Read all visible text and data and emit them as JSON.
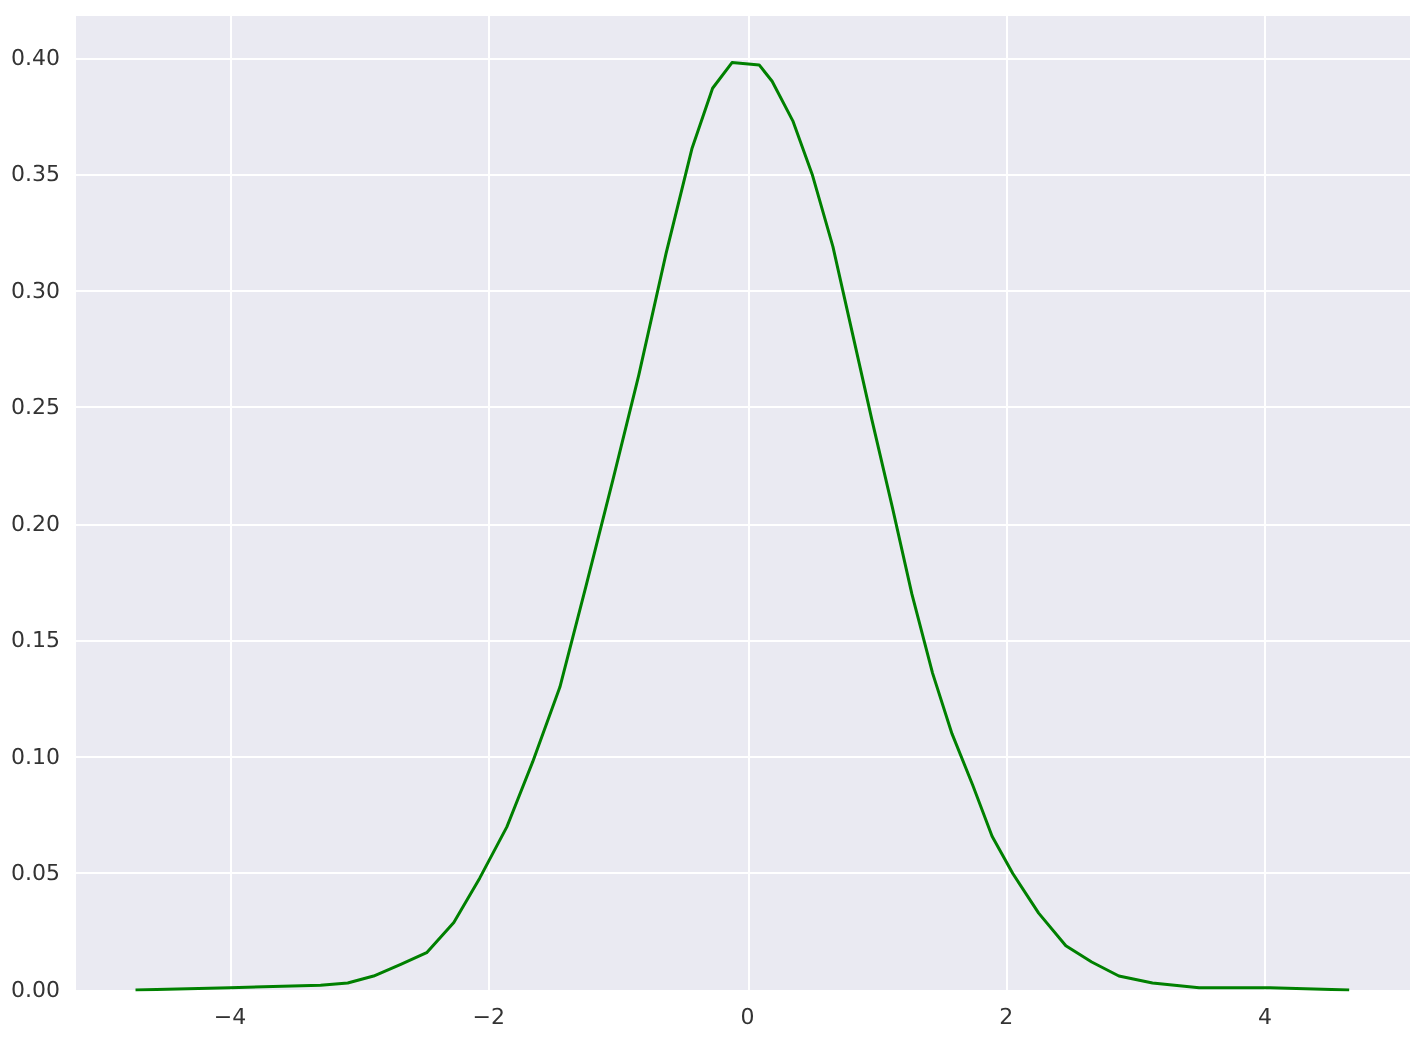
{
  "chart_data": {
    "type": "line",
    "x": [
      -4.73,
      -4,
      -3.3,
      -3.09,
      -2.89,
      -2.68,
      -2.48,
      -2.27,
      -2.07,
      -1.86,
      -1.66,
      -1.45,
      -1.25,
      -1.04,
      -0.84,
      -0.63,
      -0.43,
      -0.27,
      -0.12,
      0.09,
      0.19,
      0.35,
      0.5,
      0.66,
      0.81,
      0.96,
      1.12,
      1.27,
      1.43,
      1.58,
      1.74,
      1.89,
      2.05,
      2.25,
      2.46,
      2.66,
      2.87,
      3.13,
      3.49,
      4.0,
      4.65
    ],
    "series": [
      {
        "color": "#008000",
        "values": [
          0,
          0.001,
          0.002,
          0.003,
          0.006,
          0.011,
          0.016,
          0.029,
          0.048,
          0.07,
          0.098,
          0.13,
          0.173,
          0.219,
          0.264,
          0.316,
          0.361,
          0.387,
          0.398,
          0.397,
          0.39,
          0.373,
          0.35,
          0.319,
          0.282,
          0.245,
          0.207,
          0.17,
          0.136,
          0.11,
          0.088,
          0.066,
          0.05,
          0.033,
          0.019,
          0.012,
          0.006,
          0.003,
          0.001,
          0.001,
          0
        ]
      }
    ],
    "xlim": [
      -5.19,
      5.12
    ],
    "xticks": [
      {
        "value": -4,
        "label": "−4"
      },
      {
        "value": -2,
        "label": "−2"
      },
      0,
      2,
      4
    ],
    "ylim": [
      0,
      0.418
    ],
    "yticks": [
      {
        "value": 0,
        "label": "0.00"
      },
      {
        "value": 0.05,
        "label": "0.05"
      },
      {
        "value": 0.1,
        "label": "0.10"
      },
      {
        "value": 0.15,
        "label": "0.15"
      },
      {
        "value": 0.2,
        "label": "0.20"
      },
      {
        "value": 0.25,
        "label": "0.25"
      },
      {
        "value": 0.3,
        "label": "0.30"
      },
      {
        "value": 0.35,
        "label": "0.35"
      },
      {
        "value": 0.4,
        "label": "0.40"
      }
    ],
    "grid": true,
    "marker": "none",
    "line_style": "solid"
  }
}
